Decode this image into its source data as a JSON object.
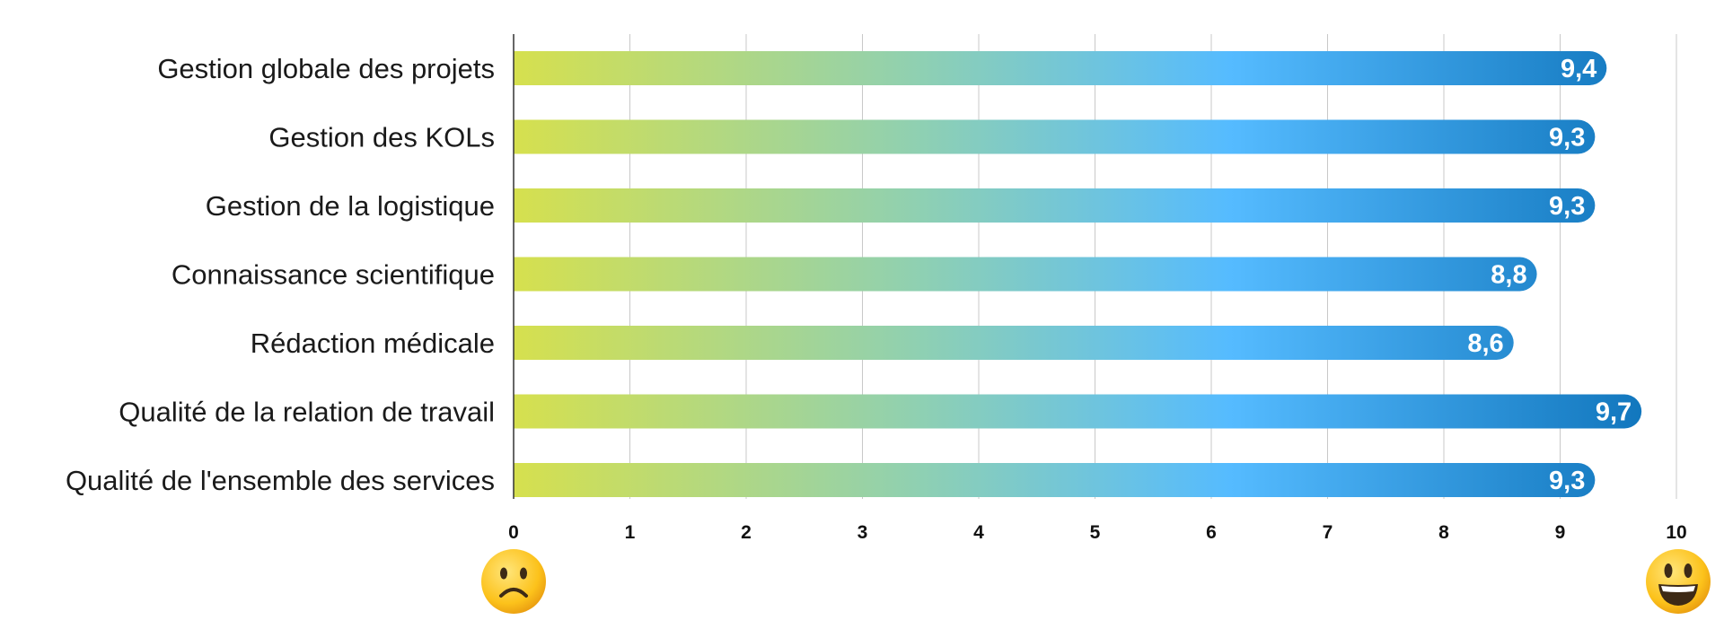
{
  "chart_data": {
    "type": "bar",
    "orientation": "horizontal",
    "categories": [
      "Gestion globale des projets",
      "Gestion des KOLs",
      "Gestion de la logistique",
      "Connaissance scientifique",
      "Rédaction médicale",
      "Qualité de la relation de travail",
      "Qualité de l'ensemble des services"
    ],
    "values": [
      9.4,
      9.3,
      9.3,
      8.8,
      8.6,
      9.7,
      9.3
    ],
    "value_labels": [
      "9,4",
      "9,3",
      "9,3",
      "8,8",
      "8,6",
      "9,7",
      "9,3"
    ],
    "xlim": [
      0,
      10
    ],
    "xticks": [
      "0",
      "1",
      "2",
      "3",
      "4",
      "5",
      "6",
      "7",
      "8",
      "9",
      "10"
    ],
    "grid": "vertical",
    "bar_gradient": [
      "#d6e04e",
      "#8fd0b2",
      "#55bbff",
      "#0d72b9"
    ],
    "grid_color": "#c8c8c8",
    "axis_color": "#333333",
    "scale_icons": [
      "frowning-face-icon",
      "smiling-face-icon"
    ]
  }
}
